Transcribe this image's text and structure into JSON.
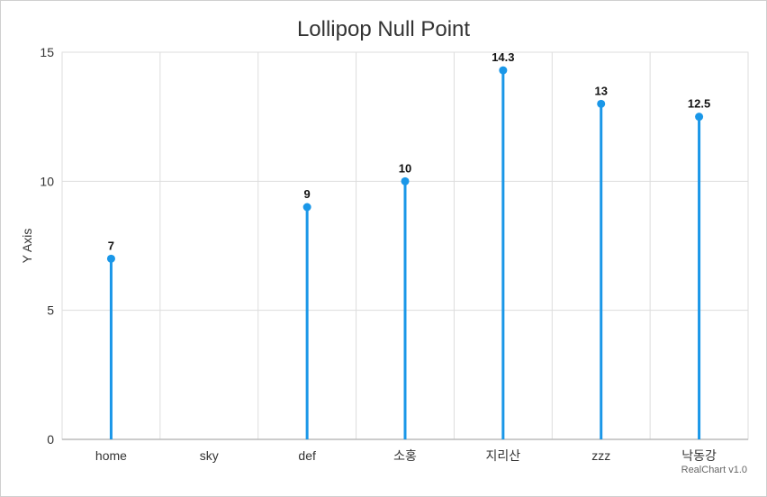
{
  "chart_data": {
    "type": "lollipop",
    "title": "Lollipop Null Point",
    "xlabel": "",
    "ylabel": "Y Axis",
    "categories": [
      "home",
      "sky",
      "def",
      "소홍",
      "지리산",
      "zzz",
      "낙동강"
    ],
    "values": [
      7,
      null,
      9,
      10,
      14.3,
      13,
      12.5
    ],
    "ylim": [
      0,
      15
    ],
    "yticks": [
      0,
      5,
      10,
      15
    ],
    "grid": true,
    "legend": "none",
    "data_labels": true
  },
  "colors": {
    "series": "#1a97e8",
    "grid": "#dddddd",
    "axis": "#bbbbbb",
    "tick_text": "#333333",
    "label_text": "#111111"
  },
  "credits": "RealChart v1.0"
}
